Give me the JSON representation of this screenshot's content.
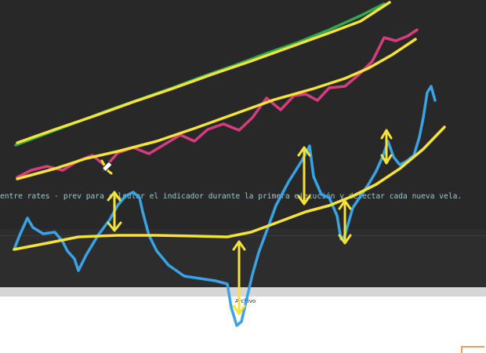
{
  "editor": {
    "code_line": "entre rates - prev para calcular el indicador durante la primera ejecución y detectar cada nueva vela."
  },
  "bottom_panel": {
    "tab_label": "Archivo"
  },
  "colors": {
    "editor_background": "#282828",
    "code_text": "#9cc8ce",
    "ink_green": "#2fa84f",
    "ink_yellow": "#f5e23a",
    "ink_pink": "#d63c7e",
    "ink_blue": "#3aa3e6",
    "corner_accent": "#f0a050"
  },
  "annotations": {
    "tool_cursor": "pen-cursor-icon"
  }
}
